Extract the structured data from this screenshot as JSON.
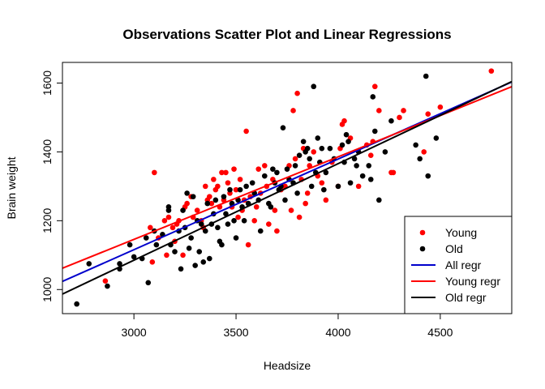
{
  "chart_data": {
    "type": "scatter",
    "title": "Observations Scatter Plot and Linear Regressions",
    "xlabel": "Headsize",
    "ylabel": "Brain weight",
    "xlim": [
      2650,
      4850
    ],
    "ylim": [
      930,
      1660
    ],
    "x_ticks": [
      3000,
      3500,
      4000,
      4500
    ],
    "y_ticks": [
      1000,
      1200,
      1400,
      1600
    ],
    "grid": false,
    "legend_position": "bottom-right",
    "series": [
      {
        "name": "Young",
        "color": "#ff0000",
        "points": [
          [
            2860,
            1025
          ],
          [
            3080,
            1180
          ],
          [
            3100,
            1340
          ],
          [
            3090,
            1080
          ],
          [
            3120,
            1150
          ],
          [
            3150,
            1200
          ],
          [
            3160,
            1100
          ],
          [
            3170,
            1210
          ],
          [
            3190,
            1180
          ],
          [
            3200,
            1140
          ],
          [
            3210,
            1190
          ],
          [
            3220,
            1200
          ],
          [
            3240,
            1100
          ],
          [
            3250,
            1240
          ],
          [
            3260,
            1250
          ],
          [
            3280,
            1270
          ],
          [
            3290,
            1210
          ],
          [
            3310,
            1230
          ],
          [
            3330,
            1200
          ],
          [
            3340,
            1180
          ],
          [
            3350,
            1300
          ],
          [
            3360,
            1260
          ],
          [
            3370,
            1270
          ],
          [
            3380,
            1250
          ],
          [
            3390,
            1320
          ],
          [
            3400,
            1290
          ],
          [
            3410,
            1300
          ],
          [
            3420,
            1240
          ],
          [
            3430,
            1340
          ],
          [
            3440,
            1260
          ],
          [
            3450,
            1340
          ],
          [
            3460,
            1310
          ],
          [
            3470,
            1280
          ],
          [
            3480,
            1240
          ],
          [
            3490,
            1350
          ],
          [
            3500,
            1290
          ],
          [
            3510,
            1210
          ],
          [
            3520,
            1320
          ],
          [
            3530,
            1230
          ],
          [
            3540,
            1260
          ],
          [
            3550,
            1460
          ],
          [
            3560,
            1130
          ],
          [
            3570,
            1270
          ],
          [
            3590,
            1200
          ],
          [
            3600,
            1240
          ],
          [
            3610,
            1350
          ],
          [
            3620,
            1280
          ],
          [
            3640,
            1360
          ],
          [
            3650,
            1300
          ],
          [
            3660,
            1190
          ],
          [
            3680,
            1320
          ],
          [
            3690,
            1230
          ],
          [
            3700,
            1170
          ],
          [
            3720,
            1290
          ],
          [
            3740,
            1300
          ],
          [
            3760,
            1360
          ],
          [
            3770,
            1230
          ],
          [
            3780,
            1520
          ],
          [
            3790,
            1380
          ],
          [
            3800,
            1570
          ],
          [
            3810,
            1210
          ],
          [
            3820,
            1320
          ],
          [
            3830,
            1410
          ],
          [
            3840,
            1250
          ],
          [
            3850,
            1280
          ],
          [
            3860,
            1360
          ],
          [
            3880,
            1400
          ],
          [
            3900,
            1330
          ],
          [
            3920,
            1310
          ],
          [
            3940,
            1260
          ],
          [
            3970,
            1370
          ],
          [
            4000,
            1300
          ],
          [
            4010,
            1410
          ],
          [
            4020,
            1480
          ],
          [
            4030,
            1490
          ],
          [
            4060,
            1440
          ],
          [
            4100,
            1300
          ],
          [
            4140,
            1420
          ],
          [
            4160,
            1390
          ],
          [
            4170,
            1430
          ],
          [
            4180,
            1590
          ],
          [
            4200,
            1520
          ],
          [
            4260,
            1340
          ],
          [
            4270,
            1340
          ],
          [
            4300,
            1500
          ],
          [
            4320,
            1520
          ],
          [
            4420,
            1400
          ],
          [
            4440,
            1510
          ],
          [
            4500,
            1530
          ],
          [
            4750,
            1635
          ]
        ]
      },
      {
        "name": "Old",
        "color": "#000000",
        "points": [
          [
            2720,
            958
          ],
          [
            2780,
            1075
          ],
          [
            2870,
            1010
          ],
          [
            2930,
            1060
          ],
          [
            2930,
            1075
          ],
          [
            2980,
            1130
          ],
          [
            3000,
            1095
          ],
          [
            3040,
            1090
          ],
          [
            3060,
            1150
          ],
          [
            3070,
            1020
          ],
          [
            3100,
            1170
          ],
          [
            3110,
            1130
          ],
          [
            3140,
            1160
          ],
          [
            3170,
            1230
          ],
          [
            3170,
            1240
          ],
          [
            3180,
            1130
          ],
          [
            3200,
            1110
          ],
          [
            3220,
            1170
          ],
          [
            3230,
            1060
          ],
          [
            3240,
            1230
          ],
          [
            3250,
            1180
          ],
          [
            3260,
            1280
          ],
          [
            3270,
            1120
          ],
          [
            3280,
            1150
          ],
          [
            3290,
            1270
          ],
          [
            3300,
            1070
          ],
          [
            3310,
            1200
          ],
          [
            3320,
            1110
          ],
          [
            3330,
            1190
          ],
          [
            3340,
            1080
          ],
          [
            3350,
            1170
          ],
          [
            3360,
            1250
          ],
          [
            3370,
            1090
          ],
          [
            3380,
            1190
          ],
          [
            3390,
            1220
          ],
          [
            3400,
            1260
          ],
          [
            3410,
            1180
          ],
          [
            3420,
            1140
          ],
          [
            3430,
            1130
          ],
          [
            3440,
            1270
          ],
          [
            3450,
            1220
          ],
          [
            3460,
            1190
          ],
          [
            3470,
            1290
          ],
          [
            3480,
            1250
          ],
          [
            3490,
            1200
          ],
          [
            3500,
            1150
          ],
          [
            3510,
            1260
          ],
          [
            3520,
            1290
          ],
          [
            3530,
            1240
          ],
          [
            3540,
            1200
          ],
          [
            3550,
            1300
          ],
          [
            3560,
            1250
          ],
          [
            3580,
            1310
          ],
          [
            3590,
            1280
          ],
          [
            3610,
            1260
          ],
          [
            3620,
            1170
          ],
          [
            3640,
            1330
          ],
          [
            3660,
            1250
          ],
          [
            3670,
            1240
          ],
          [
            3680,
            1350
          ],
          [
            3690,
            1310
          ],
          [
            3700,
            1340
          ],
          [
            3710,
            1290
          ],
          [
            3720,
            1300
          ],
          [
            3730,
            1470
          ],
          [
            3740,
            1260
          ],
          [
            3750,
            1350
          ],
          [
            3760,
            1320
          ],
          [
            3780,
            1310
          ],
          [
            3790,
            1360
          ],
          [
            3800,
            1280
          ],
          [
            3810,
            1390
          ],
          [
            3830,
            1430
          ],
          [
            3840,
            1400
          ],
          [
            3850,
            1410
          ],
          [
            3860,
            1380
          ],
          [
            3870,
            1300
          ],
          [
            3880,
            1590
          ],
          [
            3890,
            1340
          ],
          [
            3900,
            1440
          ],
          [
            3910,
            1370
          ],
          [
            3920,
            1410
          ],
          [
            3930,
            1290
          ],
          [
            3940,
            1340
          ],
          [
            3960,
            1410
          ],
          [
            3980,
            1380
          ],
          [
            4000,
            1300
          ],
          [
            4020,
            1420
          ],
          [
            4030,
            1370
          ],
          [
            4040,
            1450
          ],
          [
            4050,
            1430
          ],
          [
            4060,
            1310
          ],
          [
            4080,
            1380
          ],
          [
            4090,
            1360
          ],
          [
            4100,
            1400
          ],
          [
            4120,
            1330
          ],
          [
            4150,
            1360
          ],
          [
            4160,
            1320
          ],
          [
            4170,
            1560
          ],
          [
            4180,
            1460
          ],
          [
            4200,
            1260
          ],
          [
            4230,
            1400
          ],
          [
            4260,
            1490
          ],
          [
            4380,
            1420
          ],
          [
            4400,
            1380
          ],
          [
            4430,
            1620
          ],
          [
            4440,
            1330
          ],
          [
            4480,
            1440
          ]
        ]
      }
    ],
    "regression_lines": [
      {
        "name": "All regr",
        "color": "#0000cc",
        "intercept": 325.6,
        "slope": 0.2634
      },
      {
        "name": "Young regr",
        "color": "#ff0000",
        "intercept": 426.4,
        "slope": 0.2398
      },
      {
        "name": "Old regr",
        "color": "#000000",
        "intercept": 243.4,
        "slope": 0.2806
      }
    ],
    "legend": [
      {
        "label": "Young",
        "kind": "point",
        "color": "#ff0000"
      },
      {
        "label": "Old",
        "kind": "point",
        "color": "#000000"
      },
      {
        "label": "All regr",
        "kind": "line",
        "color": "#0000cc"
      },
      {
        "label": "Young regr",
        "kind": "line",
        "color": "#ff0000"
      },
      {
        "label": "Old regr",
        "kind": "line",
        "color": "#000000"
      }
    ]
  }
}
